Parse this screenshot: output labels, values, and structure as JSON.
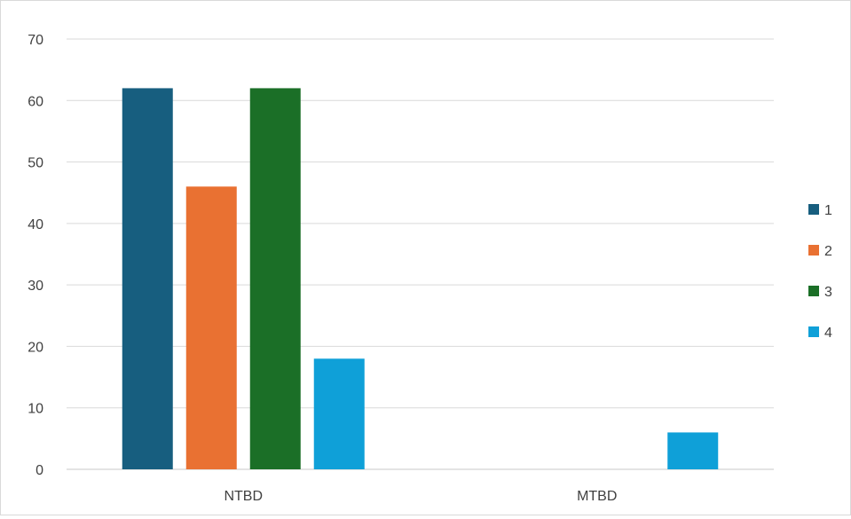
{
  "chart_data": {
    "type": "bar",
    "title": "",
    "xlabel": "",
    "ylabel": "",
    "categories": [
      "NTBD",
      "MTBD"
    ],
    "series": [
      {
        "name": "1",
        "color": "#175E7F",
        "values": [
          62,
          0
        ]
      },
      {
        "name": "2",
        "color": "#E97132",
        "values": [
          46,
          0
        ]
      },
      {
        "name": "3",
        "color": "#1B6F27",
        "values": [
          62,
          0
        ]
      },
      {
        "name": "4",
        "color": "#0FA0D8",
        "values": [
          18,
          6
        ]
      }
    ],
    "ylim": [
      0,
      70
    ],
    "yticks": [
      "0",
      "10",
      "20",
      "30",
      "40",
      "50",
      "60",
      "70"
    ],
    "grid": true,
    "legend_position": "right"
  }
}
